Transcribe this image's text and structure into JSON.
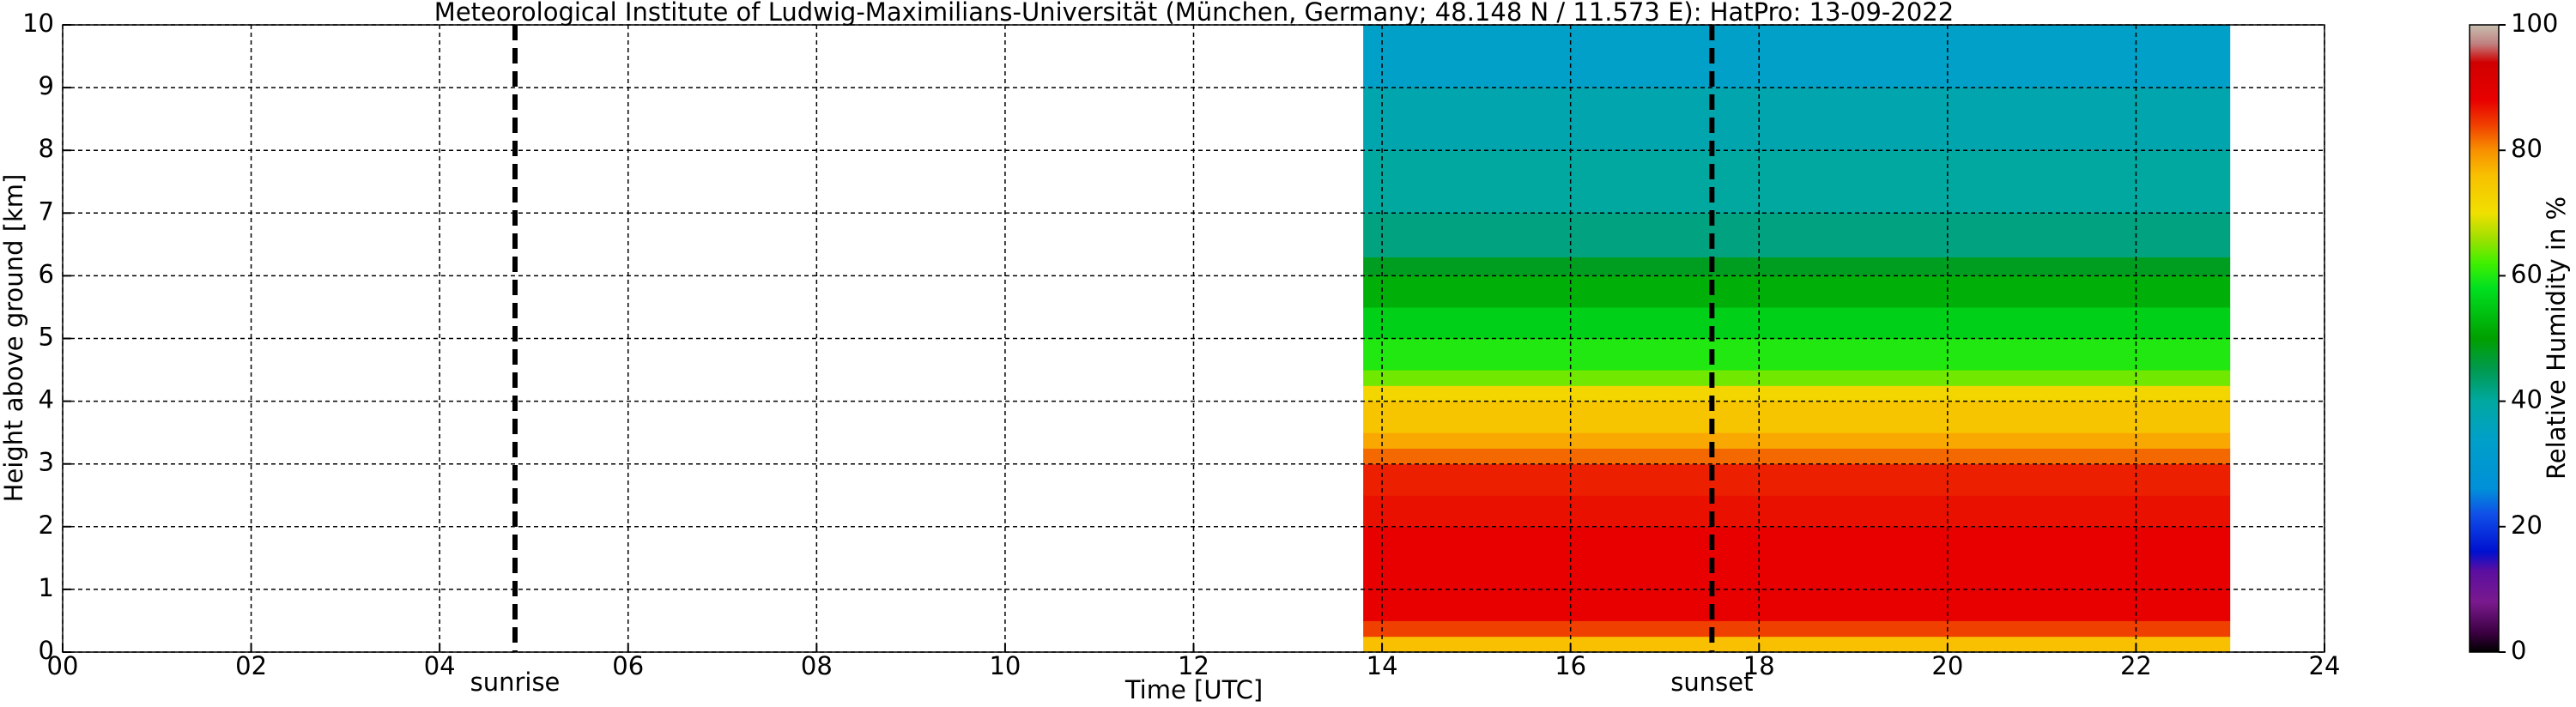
{
  "chart_data": {
    "type": "heatmap",
    "title": "Meteorological Institute of Ludwig-Maximilians-Universität (München, Germany; 48.148 N / 11.573 E):    HatPro: 13-09-2022",
    "xlabel": "Time [UTC]",
    "ylabel": "Height above ground [km]",
    "xlim": [
      0,
      24
    ],
    "xticks": [
      {
        "value": 0,
        "label": "00"
      },
      {
        "value": 2,
        "label": "02"
      },
      {
        "value": 4,
        "label": "04"
      },
      {
        "value": 6,
        "label": "06"
      },
      {
        "value": 8,
        "label": "08"
      },
      10,
      12,
      14,
      16,
      18,
      20,
      22,
      24
    ],
    "ylim": [
      0,
      10
    ],
    "yticks": [
      0,
      1,
      2,
      3,
      4,
      5,
      6,
      7,
      8,
      9,
      10
    ],
    "grid": true,
    "xbins": [
      13.8,
      23
    ],
    "ybins": [
      0,
      0.25,
      0.5,
      1,
      1.5,
      2,
      2.5,
      3,
      3.25,
      3.5,
      4,
      4.25,
      4.5,
      5,
      5.5,
      6,
      6.3,
      7,
      8,
      9,
      10
    ],
    "values": [
      [
        76
      ],
      [
        84
      ],
      [
        88
      ],
      [
        88
      ],
      [
        88
      ],
      [
        87
      ],
      [
        86
      ],
      [
        82
      ],
      [
        78
      ],
      [
        75
      ],
      [
        72
      ],
      [
        64
      ],
      [
        60
      ],
      [
        56
      ],
      [
        52
      ],
      [
        48
      ],
      [
        42
      ],
      [
        40
      ],
      [
        38
      ],
      [
        34
      ]
    ],
    "colorbar": {
      "label": "Relative Humidity in %",
      "clim": [
        0,
        100
      ],
      "ticks": [
        0,
        20,
        40,
        60,
        80,
        100
      ]
    },
    "colormap": [
      [
        0,
        "#000000"
      ],
      [
        3,
        "#3a0040"
      ],
      [
        8,
        "#7a1a8e"
      ],
      [
        13,
        "#5a0ea0"
      ],
      [
        16,
        "#0010d0"
      ],
      [
        22,
        "#1050e8"
      ],
      [
        26,
        "#0090d8"
      ],
      [
        34,
        "#00a0c8"
      ],
      [
        40,
        "#00a8a0"
      ],
      [
        45,
        "#009a50"
      ],
      [
        50,
        "#00a000"
      ],
      [
        58,
        "#00e020"
      ],
      [
        62,
        "#40f000"
      ],
      [
        66,
        "#a0e000"
      ],
      [
        70,
        "#f0e000"
      ],
      [
        76,
        "#f8c000"
      ],
      [
        80,
        "#f89000"
      ],
      [
        84,
        "#f04000"
      ],
      [
        88,
        "#e80000"
      ],
      [
        94,
        "#d00000"
      ],
      [
        97,
        "#c08080"
      ],
      [
        100,
        "#c8c0b0"
      ]
    ],
    "annotations": [
      {
        "x": 4.8,
        "label": "sunrise"
      },
      {
        "x": 17.5,
        "label": "sunset"
      }
    ]
  }
}
